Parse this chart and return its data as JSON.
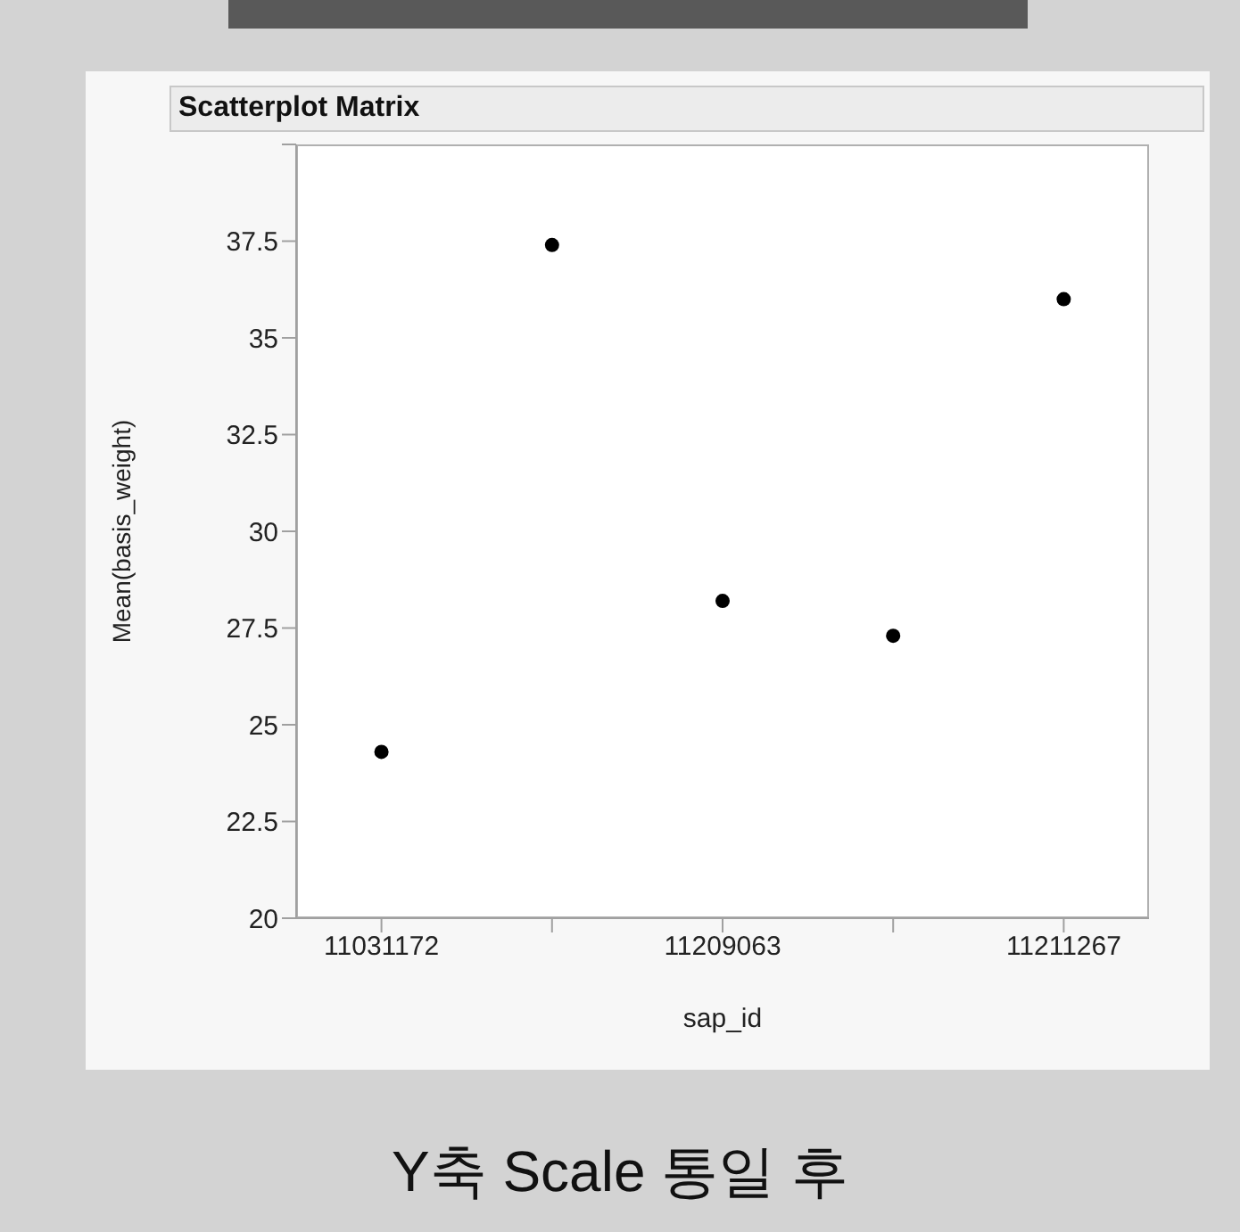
{
  "chart_data": {
    "type": "scatter",
    "title": "Scatterplot Matrix",
    "xlabel": "sap_id",
    "ylabel": "Mean(basis_weight)",
    "categories": [
      "11031172",
      null,
      "11209063",
      null,
      "11211267"
    ],
    "series": [
      {
        "color": "#000000",
        "values": [
          24.3,
          37.4,
          28.2,
          27.3,
          36.0
        ]
      }
    ],
    "ylim": [
      20,
      40
    ],
    "yticks": [
      20,
      22.5,
      25,
      27.5,
      30,
      32.5,
      35,
      37.5,
      {
        "value": 40,
        "label": null
      }
    ],
    "grid": false,
    "legend": false,
    "marker": "circle",
    "annotations": [
      "Y축 Scale 통일 후"
    ]
  }
}
